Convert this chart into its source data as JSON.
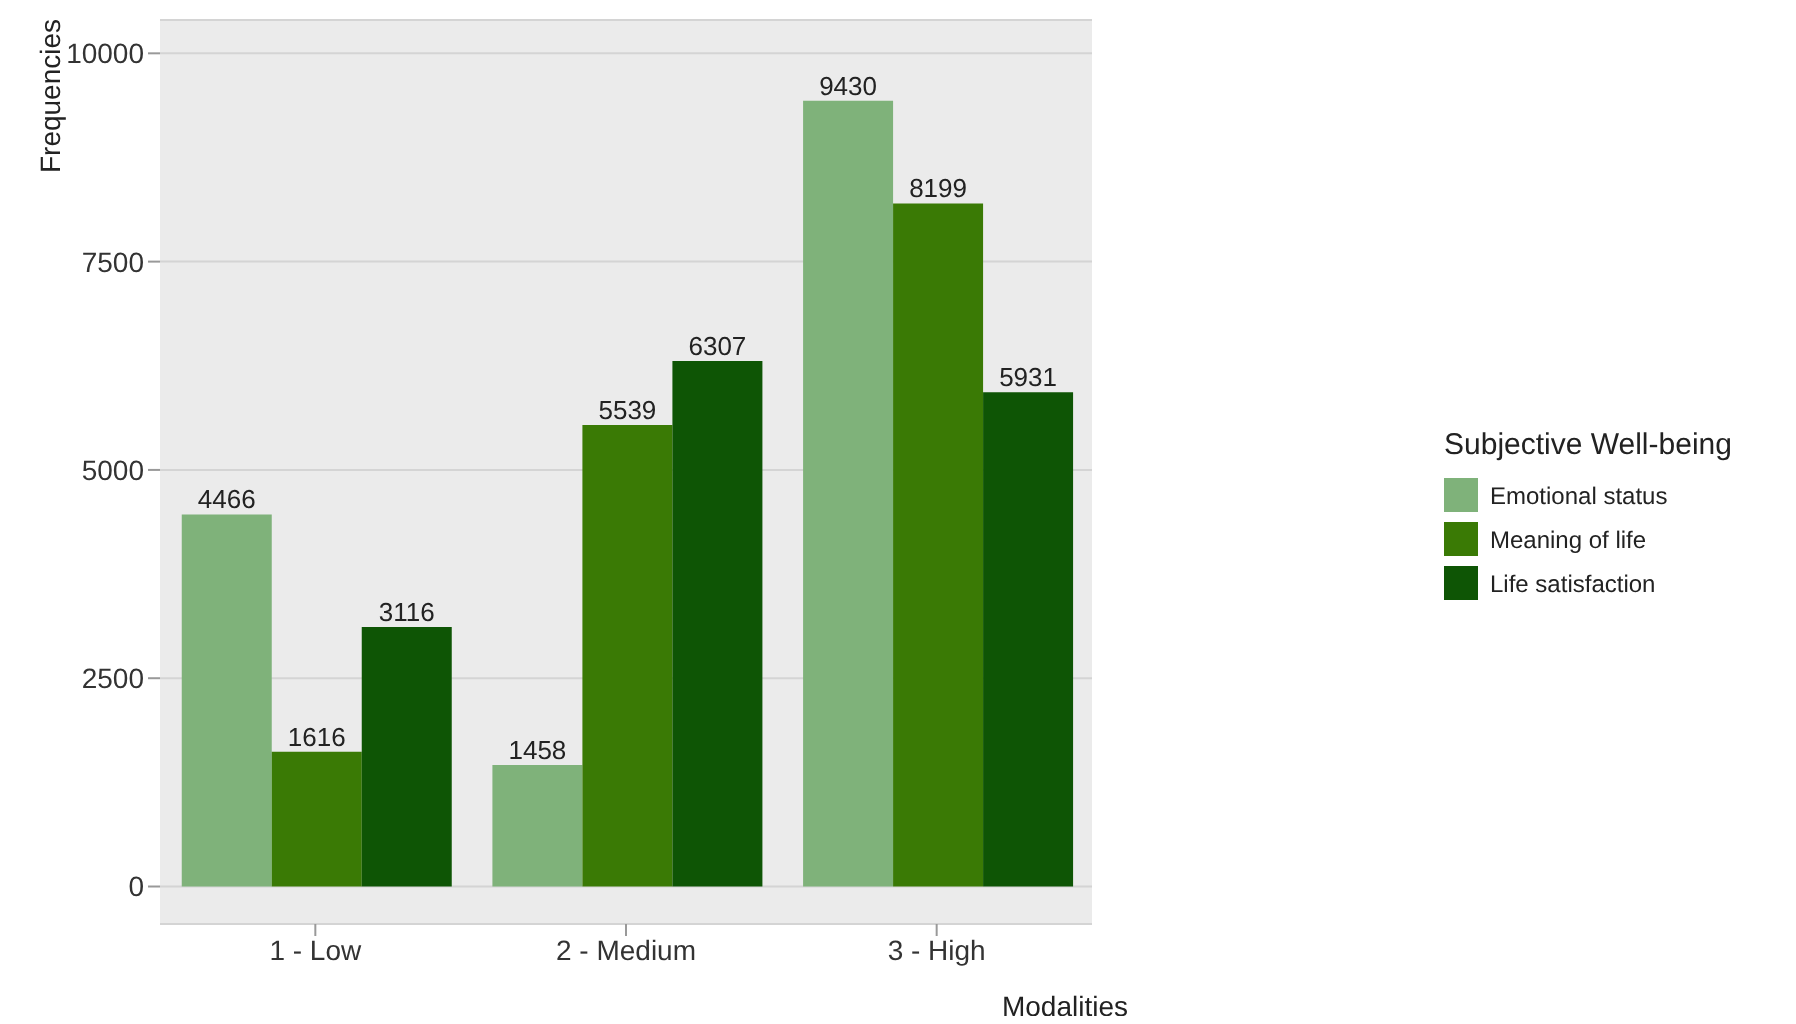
{
  "chart_data": {
    "type": "bar",
    "xlabel": "Modalities",
    "ylabel": "Frequencies",
    "legend_title": "Subjective Well-being",
    "categories": [
      "1 - Low",
      "2 - Medium",
      "3 - High"
    ],
    "series": [
      {
        "name": "Emotional status",
        "color": "#7fb27a",
        "values": [
          4466,
          1458,
          9430
        ]
      },
      {
        "name": "Meaning of life",
        "color": "#3a7a05",
        "values": [
          1616,
          5539,
          8199
        ]
      },
      {
        "name": "Life satisfaction",
        "color": "#0e5505",
        "values": [
          3116,
          6307,
          5931
        ]
      }
    ],
    "ylim": [
      -450,
      10400
    ],
    "yticks": [
      0,
      2500,
      5000,
      7500,
      10000
    ],
    "grid": "y",
    "legend": "right",
    "data_labels": true
  }
}
